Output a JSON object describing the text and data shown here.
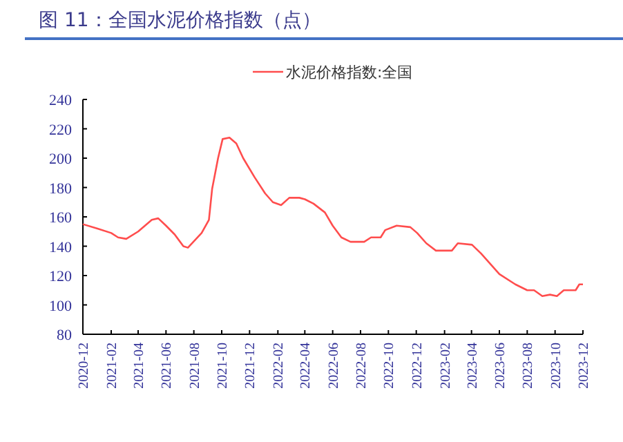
{
  "chart_data": {
    "type": "line",
    "title": "图 11：全国水泥价格指数（点）",
    "series": [
      {
        "name": "水泥价格指数:全国",
        "color": "#ff4d4d",
        "x": [
          "2020-12-01",
          "2021-01-02",
          "2021-02-01",
          "2021-02-16",
          "2021-03-06",
          "2021-04-01",
          "2021-05-01",
          "2021-05-15",
          "2021-06-01",
          "2021-06-20",
          "2021-07-09",
          "2021-07-19",
          "2021-08-18",
          "2021-09-03",
          "2021-09-10",
          "2021-09-23",
          "2021-10-03",
          "2021-10-18",
          "2021-11-02",
          "2021-11-17",
          "2021-12-12",
          "2022-01-04",
          "2022-01-21",
          "2022-02-08",
          "2022-02-26",
          "2022-03-20",
          "2022-04-01",
          "2022-04-20",
          "2022-05-15",
          "2022-06-01",
          "2022-06-20",
          "2022-07-10",
          "2022-08-09",
          "2022-08-24",
          "2022-09-14",
          "2022-09-24",
          "2022-10-19",
          "2022-11-18",
          "2022-12-03",
          "2022-12-23",
          "2023-01-13",
          "2023-02-17",
          "2023-03-02",
          "2023-04-02",
          "2023-04-22",
          "2023-06-01",
          "2023-07-06",
          "2023-08-01",
          "2023-08-16",
          "2023-09-03",
          "2023-09-20",
          "2023-10-05",
          "2023-10-20",
          "2023-11-15",
          "2023-11-23",
          "2023-12-01"
        ],
        "values": [
          155,
          152,
          149,
          146,
          145,
          150,
          158,
          159,
          154,
          148,
          140,
          139,
          149,
          158,
          179,
          200,
          213,
          214,
          210,
          200,
          187,
          176,
          170,
          168,
          173,
          173,
          172,
          169,
          163,
          154,
          146,
          143,
          143,
          146,
          146,
          151,
          154,
          153,
          149,
          142,
          137,
          137,
          142,
          141,
          135,
          121,
          114,
          110,
          110,
          106,
          107,
          106,
          110,
          110,
          114,
          114
        ]
      }
    ],
    "xlim": [
      "2020-12",
      "2023-12"
    ],
    "xticks": [
      "2020-12",
      "2021-02",
      "2021-04",
      "2021-06",
      "2021-08",
      "2021-10",
      "2021-12",
      "2022-02",
      "2022-04",
      "2022-06",
      "2022-08",
      "2022-10",
      "2022-12",
      "2023-02",
      "2023-04",
      "2023-06",
      "2023-08",
      "2023-10",
      "2023-12"
    ],
    "ylim": [
      80,
      240
    ],
    "yticks": [
      80,
      100,
      120,
      140,
      160,
      180,
      200,
      220,
      240
    ],
    "legend": "top",
    "grid": false,
    "marker": "none",
    "line_style": "solid"
  }
}
